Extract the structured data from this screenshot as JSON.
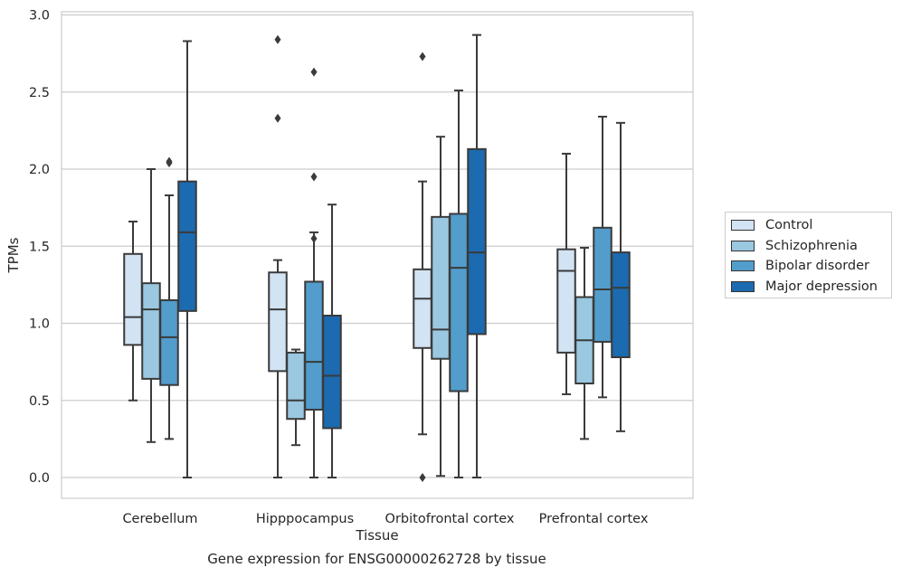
{
  "chart_data": {
    "type": "box",
    "xlabel": "Tissue",
    "ylabel": "TPMs",
    "ylim": [
      -0.14,
      3.02
    ],
    "yticks": [
      0.0,
      0.5,
      1.0,
      1.5,
      2.0,
      2.5,
      3.0
    ],
    "ytick_labels": [
      "0.0",
      "0.5",
      "1.0",
      "1.5",
      "2.0",
      "2.5",
      "3.0"
    ],
    "grid": "horizontal",
    "legend_placement": "right",
    "categories": [
      "Cerebellum",
      "Hipppocampus",
      "Orbitofrontal cortex",
      "Prefrontal cortex"
    ],
    "series": [
      {
        "name": "Control",
        "color": "#d2e3f3",
        "boxes": [
          {
            "whislo": 0.5,
            "q1": 0.86,
            "med": 1.04,
            "q3": 1.45,
            "whishi": 1.66,
            "fliers": []
          },
          {
            "whislo": 0.0,
            "q1": 0.69,
            "med": 1.09,
            "q3": 1.33,
            "whishi": 1.41,
            "fliers": [
              2.33,
              2.84
            ]
          },
          {
            "whislo": 0.28,
            "q1": 0.84,
            "med": 1.16,
            "q3": 1.35,
            "whishi": 1.92,
            "fliers": [
              0.0,
              2.73
            ]
          },
          {
            "whislo": 0.54,
            "q1": 0.81,
            "med": 1.34,
            "q3": 1.48,
            "whishi": 2.1,
            "fliers": []
          }
        ]
      },
      {
        "name": "Schizophrenia",
        "color": "#9ac8e0",
        "boxes": [
          {
            "whislo": 0.23,
            "q1": 0.64,
            "med": 1.09,
            "q3": 1.26,
            "whishi": 2.0,
            "fliers": []
          },
          {
            "whislo": 0.21,
            "q1": 0.38,
            "med": 0.5,
            "q3": 0.81,
            "whishi": 0.83,
            "fliers": []
          },
          {
            "whislo": 0.01,
            "q1": 0.77,
            "med": 0.96,
            "q3": 1.69,
            "whishi": 2.21,
            "fliers": []
          },
          {
            "whislo": 0.25,
            "q1": 0.61,
            "med": 0.89,
            "q3": 1.17,
            "whishi": 1.49,
            "fliers": []
          }
        ]
      },
      {
        "name": "Bipolar disorder",
        "color": "#529dcc",
        "boxes": [
          {
            "whislo": 0.25,
            "q1": 0.6,
            "med": 0.91,
            "q3": 1.15,
            "whishi": 1.83,
            "fliers": [
              2.04,
              2.05
            ]
          },
          {
            "whislo": 0.0,
            "q1": 0.44,
            "med": 0.75,
            "q3": 1.27,
            "whishi": 1.59,
            "fliers": [
              1.55,
              1.95,
              2.63
            ]
          },
          {
            "whislo": 0.0,
            "q1": 0.56,
            "med": 1.36,
            "q3": 1.71,
            "whishi": 2.51,
            "fliers": []
          },
          {
            "whislo": 0.52,
            "q1": 0.88,
            "med": 1.22,
            "q3": 1.62,
            "whishi": 2.34,
            "fliers": []
          }
        ]
      },
      {
        "name": "Major depression",
        "color": "#1c6aaf",
        "boxes": [
          {
            "whislo": 0.0,
            "q1": 1.08,
            "med": 1.59,
            "q3": 1.92,
            "whishi": 2.83,
            "fliers": []
          },
          {
            "whislo": 0.0,
            "q1": 0.32,
            "med": 0.66,
            "q3": 1.05,
            "whishi": 1.77,
            "fliers": []
          },
          {
            "whislo": 0.0,
            "q1": 0.93,
            "med": 1.46,
            "q3": 2.13,
            "whishi": 2.87,
            "fliers": []
          },
          {
            "whislo": 0.3,
            "q1": 0.78,
            "med": 1.23,
            "q3": 1.46,
            "whishi": 2.3,
            "fliers": []
          }
        ]
      }
    ]
  },
  "caption": "Gene expression for ENSG00000262728 by tissue"
}
